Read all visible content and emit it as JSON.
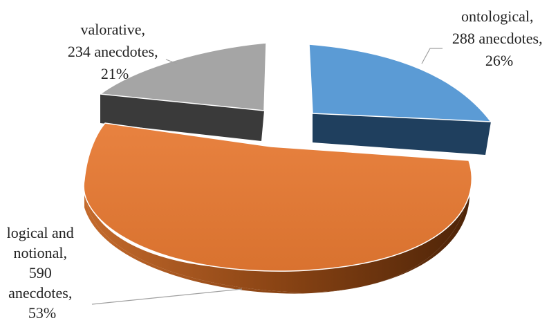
{
  "chart_data": {
    "type": "pie",
    "title": "",
    "slices": [
      {
        "name": "ontological",
        "value": 288,
        "percent": 26,
        "color": "#5b9bd5",
        "side_color": "#1f3f5e",
        "label_lines": [
          "ontological,",
          "288 anecdotes,",
          "26%"
        ]
      },
      {
        "name": "logical and notional",
        "value": 590,
        "percent": 53,
        "color": "#e07a35",
        "side_color": "#7a3a10",
        "label_lines": [
          "logical and",
          "notional,",
          "590",
          "anecdotes,",
          "53%"
        ]
      },
      {
        "name": "valorative",
        "value": 234,
        "percent": 21,
        "color": "#a5a5a5",
        "side_color": "#3a3a3a",
        "label_lines": [
          "valorative,",
          "234 anecdotes,",
          "21%"
        ]
      }
    ],
    "style": "3d-exploded",
    "legend": "none"
  }
}
